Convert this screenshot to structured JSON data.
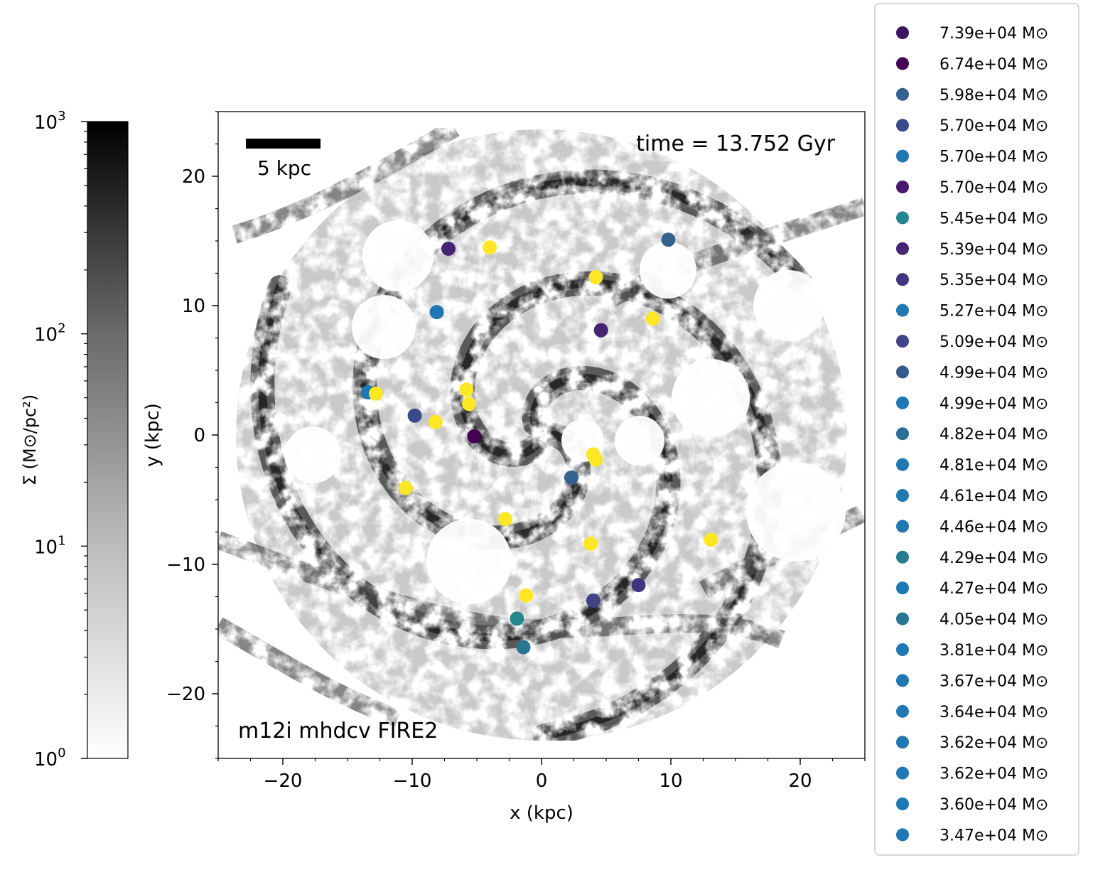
{
  "chart_data": {
    "type": "scatter",
    "background": "projected gas surface density map (grayscale, log scale)",
    "xlabel": "x (kpc)",
    "ylabel": "y (kpc)",
    "xlim": [
      -25,
      25
    ],
    "ylim": [
      -25,
      25
    ],
    "xticks": [
      -20,
      -10,
      0,
      10,
      20
    ],
    "yticks": [
      -20,
      -10,
      0,
      10,
      20
    ],
    "xtick_labels": [
      "−20",
      "−10",
      "0",
      "10",
      "20"
    ],
    "ytick_labels": [
      "−20",
      "−10",
      "0",
      "10",
      "20"
    ],
    "scale_bar_label": "5 kpc",
    "time_label": "time = 13.752 Gyr",
    "run_label": "m12i mhdcv FIRE2",
    "colorbar": {
      "label": "Σ (M⊙/pc²)",
      "scale": "log",
      "range": [
        1,
        1000
      ],
      "ticks": [
        {
          "value": 1000,
          "base": "10",
          "exp": "3"
        },
        {
          "value": 100,
          "base": "10",
          "exp": "2"
        },
        {
          "value": 10,
          "base": "10",
          "exp": "1"
        },
        {
          "value": 1,
          "base": "10",
          "exp": "0"
        }
      ],
      "colormap": "Greys"
    },
    "legend_position": "outside-right",
    "legend": [
      {
        "label": "7.39e+04 M⊙",
        "color": "#3e1361"
      },
      {
        "label": "6.74e+04 M⊙",
        "color": "#440154"
      },
      {
        "label": "5.98e+04 M⊙",
        "color": "#34618d"
      },
      {
        "label": "5.70e+04 M⊙",
        "color": "#3b4a8a"
      },
      {
        "label": "5.70e+04 M⊙",
        "color": "#2178b2"
      },
      {
        "label": "5.70e+04 M⊙",
        "color": "#46186e"
      },
      {
        "label": "5.45e+04 M⊙",
        "color": "#24878e"
      },
      {
        "label": "5.39e+04 M⊙",
        "color": "#472374"
      },
      {
        "label": "5.35e+04 M⊙",
        "color": "#433480"
      },
      {
        "label": "5.27e+04 M⊙",
        "color": "#1f77b4"
      },
      {
        "label": "5.09e+04 M⊙",
        "color": "#414487"
      },
      {
        "label": "4.99e+04 M⊙",
        "color": "#355a8c"
      },
      {
        "label": "4.99e+04 M⊙",
        "color": "#1f77b4"
      },
      {
        "label": "4.82e+04 M⊙",
        "color": "#2a6f98"
      },
      {
        "label": "4.81e+04 M⊙",
        "color": "#1f77b4"
      },
      {
        "label": "4.61e+04 M⊙",
        "color": "#1f77b4"
      },
      {
        "label": "4.46e+04 M⊙",
        "color": "#1f77b4"
      },
      {
        "label": "4.29e+04 M⊙",
        "color": "#267d8e"
      },
      {
        "label": "4.27e+04 M⊙",
        "color": "#1f77b4"
      },
      {
        "label": "4.05e+04 M⊙",
        "color": "#2a7592"
      },
      {
        "label": "3.81e+04 M⊙",
        "color": "#1f77b4"
      },
      {
        "label": "3.67e+04 M⊙",
        "color": "#1f77b4"
      },
      {
        "label": "3.64e+04 M⊙",
        "color": "#1f77b4"
      },
      {
        "label": "3.62e+04 M⊙",
        "color": "#1f77b4"
      },
      {
        "label": "3.62e+04 M⊙",
        "color": "#1f77b4"
      },
      {
        "label": "3.60e+04 M⊙",
        "color": "#1f77b4"
      },
      {
        "label": "3.47e+04 M⊙",
        "color": "#1f77b4"
      }
    ],
    "points": [
      {
        "x": -7.2,
        "y": 14.4,
        "color": "#472374"
      },
      {
        "x": -4.0,
        "y": 14.5,
        "color": "#fde725"
      },
      {
        "x": 9.8,
        "y": 15.1,
        "color": "#34618d"
      },
      {
        "x": 4.2,
        "y": 12.2,
        "color": "#fde725"
      },
      {
        "x": -8.1,
        "y": 9.5,
        "color": "#1f77b4"
      },
      {
        "x": 8.6,
        "y": 9.0,
        "color": "#fde725"
      },
      {
        "x": 4.6,
        "y": 8.1,
        "color": "#472374"
      },
      {
        "x": -13.4,
        "y": 3.3,
        "color": "#1f77b4"
      },
      {
        "x": -12.8,
        "y": 3.2,
        "color": "#fde725"
      },
      {
        "x": -5.8,
        "y": 3.5,
        "color": "#fde725"
      },
      {
        "x": -5.6,
        "y": 2.4,
        "color": "#fde725"
      },
      {
        "x": -9.8,
        "y": 1.5,
        "color": "#3b4a8a"
      },
      {
        "x": -8.2,
        "y": 1.0,
        "color": "#fde725"
      },
      {
        "x": -5.2,
        "y": -0.1,
        "color": "#440154"
      },
      {
        "x": 4.0,
        "y": -1.5,
        "color": "#fde725"
      },
      {
        "x": 4.2,
        "y": -1.9,
        "color": "#fde725"
      },
      {
        "x": 2.3,
        "y": -3.3,
        "color": "#34618d"
      },
      {
        "x": -10.5,
        "y": -4.1,
        "color": "#fde725"
      },
      {
        "x": -2.8,
        "y": -6.5,
        "color": "#fde725"
      },
      {
        "x": 3.8,
        "y": -8.4,
        "color": "#fde725"
      },
      {
        "x": 13.1,
        "y": -8.1,
        "color": "#fde725"
      },
      {
        "x": 7.5,
        "y": -11.6,
        "color": "#433480"
      },
      {
        "x": -1.2,
        "y": -12.4,
        "color": "#fde725"
      },
      {
        "x": 4.0,
        "y": -12.8,
        "color": "#414487"
      },
      {
        "x": -1.9,
        "y": -14.2,
        "color": "#24878e"
      },
      {
        "x": -1.4,
        "y": -16.4,
        "color": "#2a7592"
      }
    ]
  }
}
